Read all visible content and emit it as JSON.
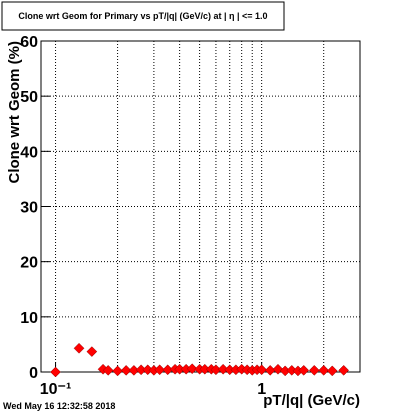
{
  "chart_data": {
    "type": "scatter",
    "title": "Clone wrt Geom for Primary vs pT/|q| (GeV/c) at | η | <= 1.0",
    "x_label": "pT/|q| (GeV/c)",
    "y_label": "Clone wrt Geom (%)",
    "footer": "Wed May 16 12:32:58 2018",
    "log_x": true,
    "grid": true,
    "xlim": [
      0.085,
      3
    ],
    "ylim": [
      0,
      60
    ],
    "xticks": [
      {
        "value": 0.1,
        "label": "10⁻¹"
      },
      1
    ],
    "xminor_ticks": [
      0.2,
      0.3,
      0.4,
      0.5,
      0.6,
      0.7,
      0.8,
      0.9,
      2
    ],
    "yticks": [
      0,
      10,
      20,
      30,
      40,
      50,
      60
    ],
    "series": [
      {
        "name": "Clone wrt Geom",
        "color": "#ff0000",
        "x": [
          0.1,
          0.13,
          0.15,
          0.17,
          0.18,
          0.2,
          0.22,
          0.24,
          0.26,
          0.28,
          0.3,
          0.32,
          0.35,
          0.38,
          0.4,
          0.43,
          0.46,
          0.5,
          0.53,
          0.57,
          0.6,
          0.65,
          0.7,
          0.75,
          0.8,
          0.85,
          0.9,
          0.95,
          1.0,
          1.1,
          1.2,
          1.3,
          1.4,
          1.5,
          1.6,
          1.8,
          2.0,
          2.2,
          2.5
        ],
        "values": [
          0,
          4.3,
          3.7,
          0.5,
          0.3,
          0.2,
          0.3,
          0.3,
          0.4,
          0.4,
          0.3,
          0.4,
          0.4,
          0.5,
          0.5,
          0.5,
          0.6,
          0.5,
          0.5,
          0.5,
          0.4,
          0.5,
          0.4,
          0.4,
          0.5,
          0.4,
          0.3,
          0.4,
          0.4,
          0.3,
          0.5,
          0.2,
          0.3,
          0.2,
          0.3,
          0.3,
          0.3,
          0.2,
          0.3
        ]
      }
    ]
  }
}
